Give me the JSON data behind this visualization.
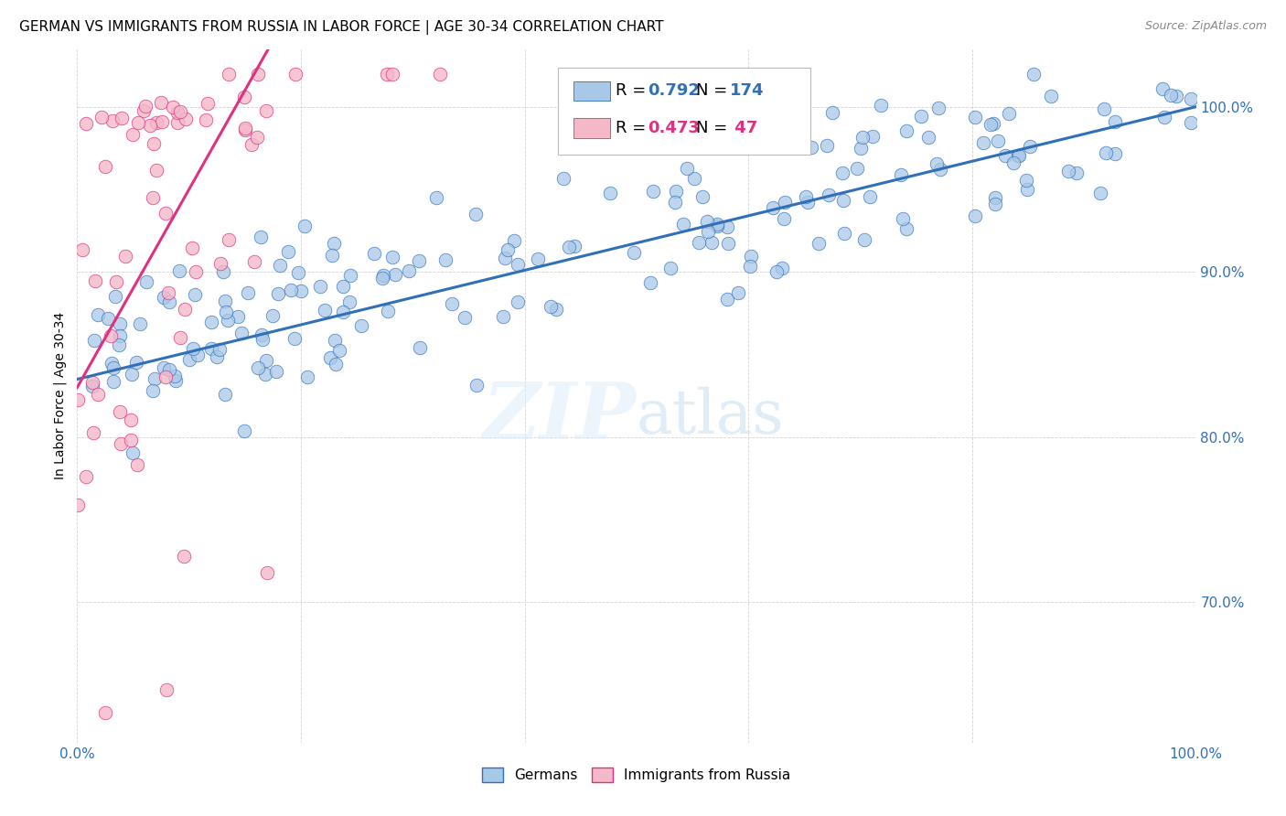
{
  "title": "GERMAN VS IMMIGRANTS FROM RUSSIA IN LABOR FORCE | AGE 30-34 CORRELATION CHART",
  "source": "Source: ZipAtlas.com",
  "ylabel": "In Labor Force | Age 30-34",
  "xlim": [
    0.0,
    1.0
  ],
  "ylim": [
    0.615,
    1.035
  ],
  "ytick_labels": [
    "70.0%",
    "80.0%",
    "90.0%",
    "100.0%"
  ],
  "ytick_values": [
    0.7,
    0.8,
    0.9,
    1.0
  ],
  "xtick_labels": [
    "0.0%",
    "",
    "",
    "",
    "",
    "100.0%"
  ],
  "xtick_values": [
    0.0,
    0.2,
    0.4,
    0.6,
    0.8,
    1.0
  ],
  "legend_german_label": "Germans",
  "legend_russia_label": "Immigrants from Russia",
  "german_R": "0.792",
  "german_N": "174",
  "russia_R": "0.473",
  "russia_N": "47",
  "blue_color": "#a8c8e8",
  "pink_color": "#f4b8c8",
  "blue_line_color": "#3070b8",
  "pink_line_color": "#e03080",
  "title_fontsize": 11,
  "axis_label_fontsize": 10,
  "tick_fontsize": 11,
  "source_fontsize": 9
}
